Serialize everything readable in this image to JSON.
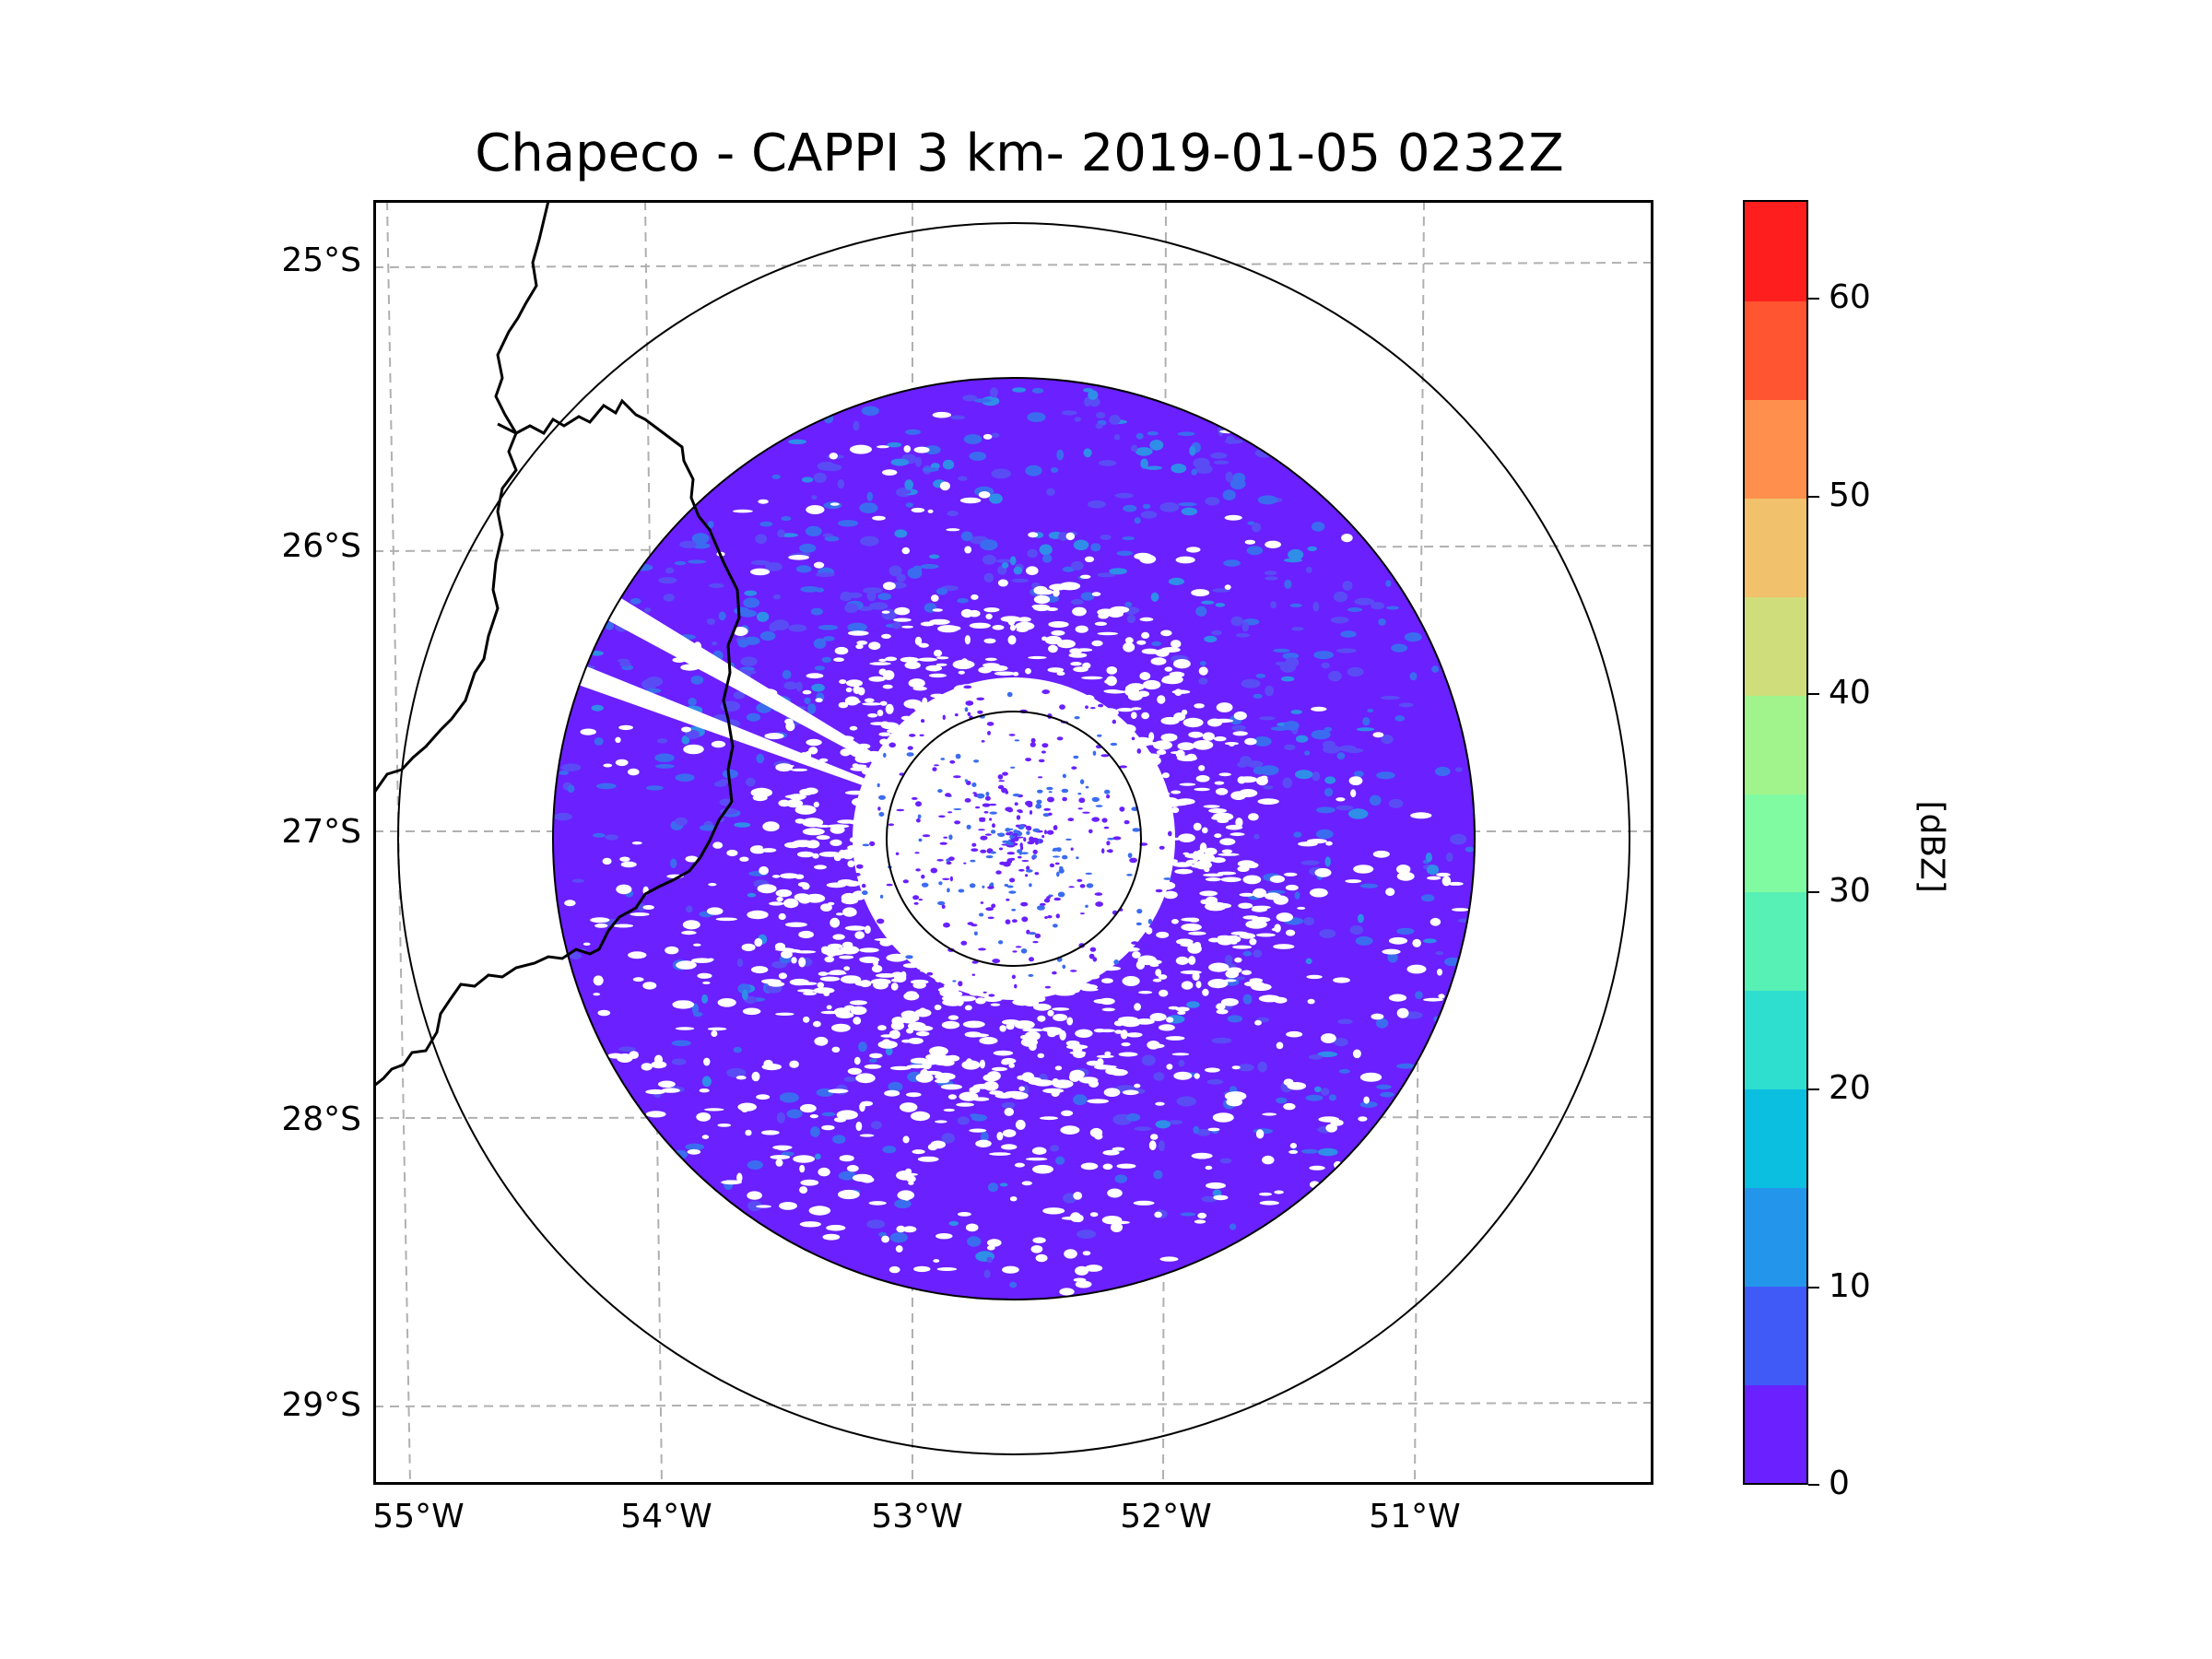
{
  "title": "Chapeco - CAPPI 3 km- 2019-01-05 0232Z",
  "lat_labels": [
    "25°S",
    "26°S",
    "27°S",
    "28°S",
    "29°S"
  ],
  "lon_labels": [
    "55°W",
    "54°W",
    "53°W",
    "52°W",
    "51°W"
  ],
  "colorbar": {
    "label": "[dBZ]",
    "ticks": [
      "0",
      "10",
      "20",
      "30",
      "40",
      "50",
      "60"
    ],
    "range": [
      0,
      65
    ],
    "colors": [
      "#6a20ff",
      "#3f5af7",
      "#2396eb",
      "#0bbfe0",
      "#2edfd0",
      "#57f0b5",
      "#80fba2",
      "#a1f48c",
      "#cfde7b",
      "#f2c16c",
      "#ff8f4c",
      "#ff5530",
      "#ff1e1e"
    ]
  },
  "radar_colors": {
    "base": "#6a20ff",
    "light": "#5a4cf5",
    "echo": "#3b6cf0",
    "echo_strong": "#2f8ee8"
  },
  "chart_data": {
    "type": "heatmap",
    "title": "Chapeco - CAPPI 3 km- 2019-01-05 0232Z",
    "xlabel": "",
    "ylabel": "",
    "x_ticks": [
      "55°W",
      "54°W",
      "53°W",
      "52°W",
      "51°W"
    ],
    "y_ticks": [
      "25°S",
      "26°S",
      "27°S",
      "28°S",
      "29°S"
    ],
    "colorbar_label": "[dBZ]",
    "value_range": [
      0,
      65
    ],
    "center_lon": -52.6,
    "center_lat": -27.05
  }
}
